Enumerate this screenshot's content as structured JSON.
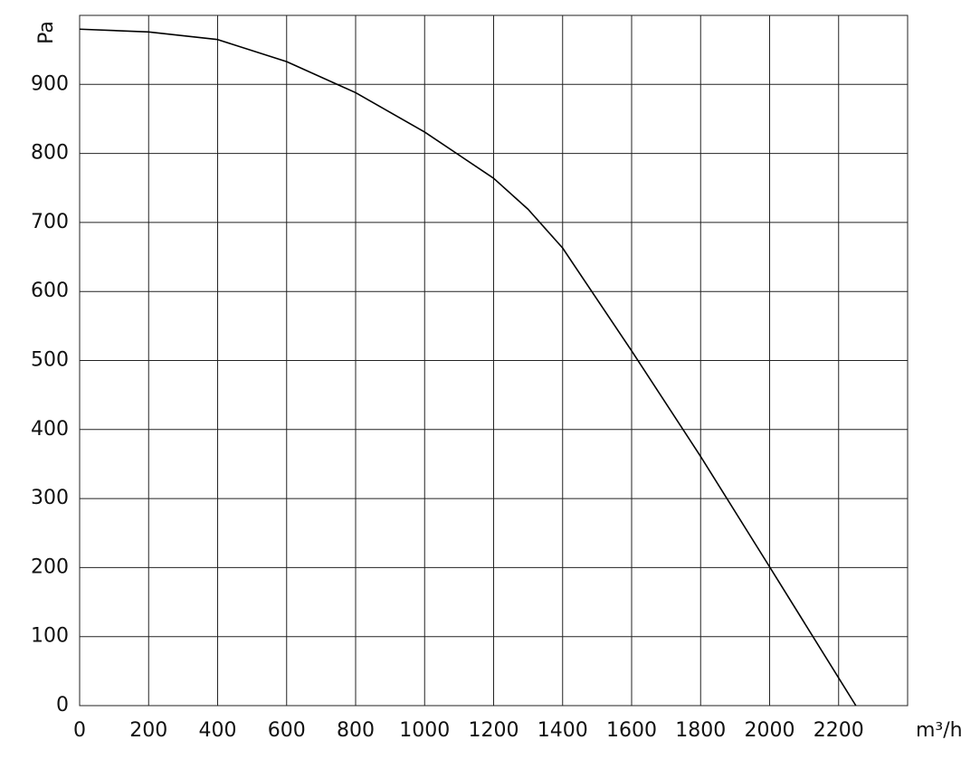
{
  "chart_data": {
    "type": "line",
    "x_label": "m³/h",
    "y_label": "Pa",
    "x": [
      0,
      200,
      400,
      600,
      800,
      1000,
      1200,
      1300,
      1400,
      1600,
      1800,
      2000,
      2250
    ],
    "series": [
      {
        "color": "#000000",
        "values": [
          980,
          976,
          965,
          933,
          888,
          831,
          764,
          719,
          663,
          514,
          361,
          201,
          0
        ]
      }
    ],
    "xlim": [
      0,
      2400
    ],
    "xticks": [
      0,
      200,
      400,
      600,
      800,
      1000,
      1200,
      1400,
      1600,
      1800,
      2000,
      2200
    ],
    "ylim": [
      0,
      1000
    ],
    "yticks": [
      0,
      100,
      200,
      300,
      400,
      500,
      600,
      700,
      800,
      900
    ],
    "grid": true
  }
}
